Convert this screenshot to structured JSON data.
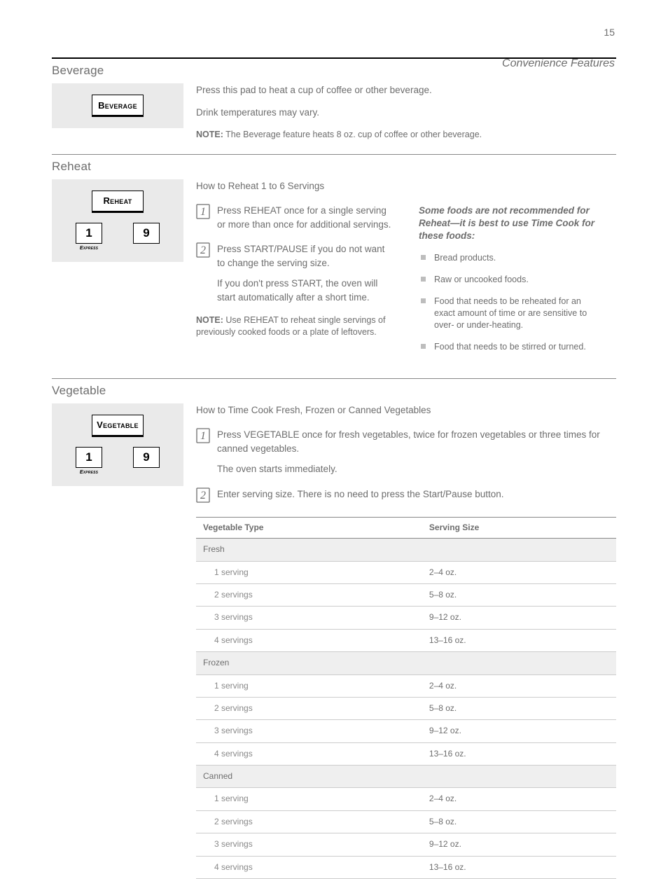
{
  "page_number": "15",
  "header_right": "Convenience Features",
  "sections": {
    "beverage": {
      "title": "Beverage",
      "panel_key": "Beverage",
      "desc_line1": "Press this pad to heat a cup of coffee or other beverage.",
      "desc_line2": "Drink temperatures may vary.",
      "note_head": "NOTE:",
      "note_body": " The Beverage feature heats 8 oz. cup of coffee or other beverage."
    },
    "reheat": {
      "title": "Reheat",
      "panel_key": "Reheat",
      "panel_num1": "1",
      "panel_num2": "9",
      "panel_express": "Express",
      "step1": "Press REHEAT once for a single serving or more than once for additional servings.",
      "step2": "Press START/PAUSE if you do not want to change the serving size.",
      "step2_cont": "If you don't press START, the oven will start automatically after a short time.",
      "note_head": "NOTE:",
      "note_body": " Use REHEAT to reheat single servings of previously cooked foods or a plate of leftovers.",
      "avoid_title": "Some foods are not recommended for Reheat—it is best to use Time Cook for these foods:",
      "avoid": [
        "Bread products.",
        "Raw or uncooked foods.",
        "Food that needs to be reheated for an exact amount of time or are sensitive to over- or under-heating.",
        "Food that needs to be stirred or turned."
      ]
    },
    "vegetable": {
      "title": "Vegetable",
      "panel_key": "Vegetable",
      "panel_num1": "1",
      "panel_num2": "9",
      "panel_express": "Express",
      "step1": "Press VEGETABLE once for fresh vegetables, twice for frozen vegetables or three times for canned vegetables.",
      "step1_cont": "The oven starts immediately.",
      "step2": "Enter serving size. There is no need to press the Start/Pause button.",
      "table": {
        "headers": [
          "Vegetable Type",
          "Serving Size"
        ],
        "rows": [
          {
            "grp": true,
            "cells": [
              "Fresh",
              ""
            ]
          },
          {
            "grp": false,
            "cells": [
              "1 serving",
              "2–4 oz."
            ]
          },
          {
            "grp": false,
            "cells": [
              "2 servings",
              "5–8 oz."
            ]
          },
          {
            "grp": false,
            "cells": [
              "3 servings",
              "9–12 oz."
            ]
          },
          {
            "grp": false,
            "cells": [
              "4 servings",
              "13–16 oz."
            ]
          },
          {
            "grp": true,
            "cells": [
              "Frozen",
              ""
            ]
          },
          {
            "grp": false,
            "cells": [
              "1 serving",
              "2–4 oz."
            ]
          },
          {
            "grp": false,
            "cells": [
              "2 servings",
              "5–8 oz."
            ]
          },
          {
            "grp": false,
            "cells": [
              "3 servings",
              "9–12 oz."
            ]
          },
          {
            "grp": false,
            "cells": [
              "4 servings",
              "13–16 oz."
            ]
          },
          {
            "grp": true,
            "cells": [
              "Canned",
              ""
            ]
          },
          {
            "grp": false,
            "cells": [
              "1 serving",
              "2–4 oz."
            ]
          },
          {
            "grp": false,
            "cells": [
              "2 servings",
              "5–8 oz."
            ]
          },
          {
            "grp": false,
            "cells": [
              "3 servings",
              "9–12 oz."
            ]
          },
          {
            "grp": false,
            "cells": [
              "4 servings",
              "13–16 oz."
            ]
          }
        ]
      }
    }
  },
  "colors": {
    "panel_bg": "#eaeaea",
    "text": "#6d6d6d",
    "rule": "#000000",
    "thin_rule": "#888888",
    "bullet": "#bdbdbd"
  }
}
